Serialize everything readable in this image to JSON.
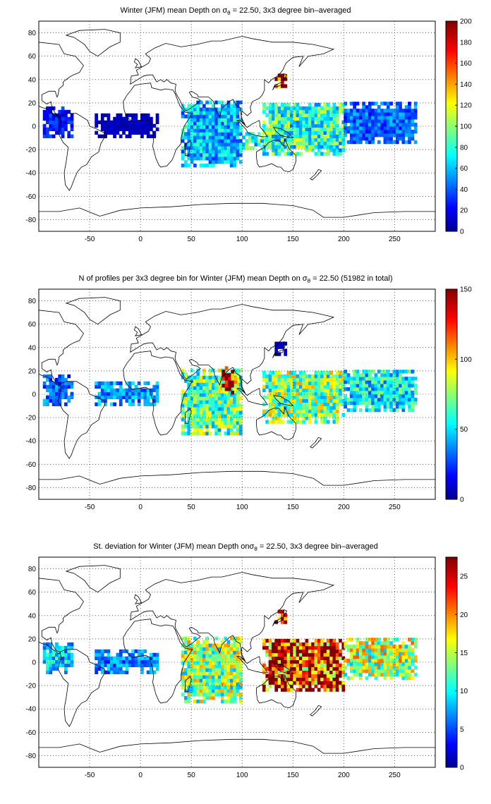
{
  "panels": [
    {
      "title_pre": "Winter (JFM) mean Depth on ",
      "title_post": " = 22.50, 3x3 degree bin–averaged",
      "colorbar": {
        "min": 0,
        "max": 200,
        "ticks": [
          0,
          20,
          40,
          60,
          80,
          100,
          120,
          140,
          160,
          180,
          200
        ]
      },
      "regions": [
        {
          "name": "tropical-atlantic-west",
          "lon": [
            -96,
            -68
          ],
          "lat": [
            -10,
            15
          ],
          "value": 30
        },
        {
          "name": "tropical-atlantic-east",
          "lon": [
            -45,
            17
          ],
          "lat": [
            -10,
            10
          ],
          "value": 12
        },
        {
          "name": "indian-ocean",
          "lon": [
            40,
            100
          ],
          "lat": [
            -35,
            20
          ],
          "value": 62
        },
        {
          "name": "west-pacific",
          "lon": [
            120,
            200
          ],
          "lat": [
            -25,
            20
          ],
          "value": 85
        },
        {
          "name": "central-pacific",
          "lon": [
            200,
            270
          ],
          "lat": [
            -15,
            20
          ],
          "value": 45
        },
        {
          "name": "japan-kuroshio",
          "lon": [
            132,
            144
          ],
          "lat": [
            33,
            45
          ],
          "value": 190
        },
        {
          "name": "timor-sea",
          "lon": [
            100,
            120
          ],
          "lat": [
            -20,
            -5
          ],
          "value": 78
        }
      ]
    },
    {
      "title_pre": "N of profiles per 3x3 degree bin for Winter (JFM) mean Depth on ",
      "title_post": " = 22.50 (51982 in total)",
      "colorbar": {
        "min": 0,
        "max": 150,
        "ticks": [
          0,
          50,
          100,
          150
        ]
      },
      "regions": [
        {
          "name": "tropical-atlantic-west",
          "lon": [
            -96,
            -68
          ],
          "lat": [
            -10,
            15
          ],
          "value": 35
        },
        {
          "name": "tropical-atlantic-east",
          "lon": [
            -45,
            17
          ],
          "lat": [
            -10,
            10
          ],
          "value": 40
        },
        {
          "name": "indian-ocean",
          "lon": [
            40,
            100
          ],
          "lat": [
            -35,
            20
          ],
          "value": 70
        },
        {
          "name": "bay-of-bengal",
          "lon": [
            80,
            95
          ],
          "lat": [
            0,
            22
          ],
          "value": 140
        },
        {
          "name": "west-pacific",
          "lon": [
            120,
            200
          ],
          "lat": [
            -25,
            20
          ],
          "value": 75
        },
        {
          "name": "central-pacific",
          "lon": [
            200,
            270
          ],
          "lat": [
            -15,
            20
          ],
          "value": 55
        },
        {
          "name": "japan-kuroshio",
          "lon": [
            132,
            144
          ],
          "lat": [
            33,
            45
          ],
          "value": 10
        }
      ]
    },
    {
      "title_pre": "St. deviation for Winter (JFM) mean Depth on",
      "title_post": " = 22.50, 3x3 degree bin–averaged",
      "colorbar": {
        "min": 0,
        "max": 27.5,
        "ticks": [
          0,
          5,
          10,
          15,
          20,
          25
        ]
      },
      "regions": [
        {
          "name": "tropical-atlantic-west",
          "lon": [
            -96,
            -68
          ],
          "lat": [
            -10,
            15
          ],
          "value": 9
        },
        {
          "name": "tropical-atlantic-east",
          "lon": [
            -45,
            17
          ],
          "lat": [
            -10,
            10
          ],
          "value": 7
        },
        {
          "name": "indian-ocean",
          "lon": [
            40,
            100
          ],
          "lat": [
            -35,
            20
          ],
          "value": 14
        },
        {
          "name": "west-pacific",
          "lon": [
            120,
            200
          ],
          "lat": [
            -25,
            20
          ],
          "value": 24
        },
        {
          "name": "central-pacific",
          "lon": [
            200,
            270
          ],
          "lat": [
            -15,
            20
          ],
          "value": 15
        },
        {
          "name": "japan-kuroshio",
          "lon": [
            132,
            144
          ],
          "lat": [
            33,
            45
          ],
          "value": 26
        }
      ]
    }
  ],
  "sigma": "σ",
  "sigma_sub": "θ",
  "x_ticks": [
    -50,
    0,
    50,
    100,
    150,
    200,
    250
  ],
  "y_ticks": [
    80,
    60,
    40,
    20,
    0,
    -20,
    -40,
    -60,
    -80
  ],
  "lon_range": [
    -100,
    290
  ],
  "lat_range": [
    -90,
    90
  ],
  "colormap": "jet"
}
